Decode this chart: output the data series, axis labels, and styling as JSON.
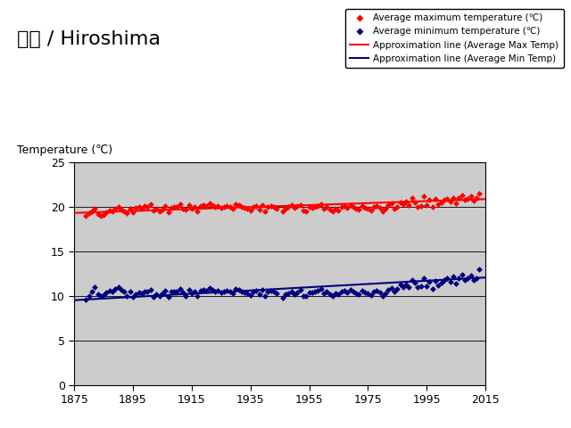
{
  "title_jp": "広島 / Hiroshima",
  "ylabel": "Temperature (℃)",
  "xlim": [
    1875,
    2015
  ],
  "ylim": [
    0,
    25
  ],
  "yticks": [
    0,
    5,
    10,
    15,
    20,
    25
  ],
  "xticks": [
    1875,
    1895,
    1915,
    1935,
    1955,
    1975,
    1995,
    2015
  ],
  "bg_color": "#cccccc",
  "legend_labels": [
    "Average maximum temperature (℃)",
    "Average minimum temperature (℃)",
    "Approximation line (Average Max Temp)",
    "Approximation line (Average Min Temp)"
  ],
  "max_temp_scatter": {
    "years": [
      1879,
      1880,
      1881,
      1882,
      1883,
      1884,
      1885,
      1886,
      1887,
      1888,
      1889,
      1890,
      1891,
      1892,
      1893,
      1894,
      1895,
      1896,
      1897,
      1898,
      1899,
      1900,
      1901,
      1902,
      1903,
      1904,
      1905,
      1906,
      1907,
      1908,
      1909,
      1910,
      1911,
      1912,
      1913,
      1914,
      1915,
      1916,
      1917,
      1918,
      1919,
      1920,
      1921,
      1922,
      1923,
      1924,
      1925,
      1926,
      1927,
      1928,
      1929,
      1930,
      1931,
      1932,
      1933,
      1934,
      1935,
      1936,
      1937,
      1938,
      1939,
      1940,
      1941,
      1942,
      1943,
      1944,
      1946,
      1947,
      1948,
      1949,
      1950,
      1951,
      1952,
      1953,
      1954,
      1955,
      1956,
      1957,
      1958,
      1959,
      1960,
      1961,
      1962,
      1963,
      1964,
      1965,
      1966,
      1967,
      1968,
      1969,
      1970,
      1971,
      1972,
      1973,
      1974,
      1975,
      1976,
      1977,
      1978,
      1979,
      1980,
      1981,
      1982,
      1983,
      1984,
      1985,
      1986,
      1987,
      1988,
      1989,
      1990,
      1991,
      1992,
      1993,
      1994,
      1995,
      1996,
      1997,
      1998,
      1999,
      2000,
      2001,
      2002,
      2003,
      2004,
      2005,
      2006,
      2007,
      2008,
      2009,
      2010,
      2011,
      2012,
      2013
    ],
    "temps": [
      19.0,
      19.3,
      19.5,
      19.8,
      19.2,
      19.0,
      19.1,
      19.4,
      19.6,
      19.5,
      19.8,
      20.0,
      19.7,
      19.5,
      19.3,
      19.8,
      19.4,
      19.9,
      20.0,
      19.8,
      20.1,
      20.0,
      20.3,
      19.6,
      19.8,
      19.5,
      19.7,
      20.1,
      19.4,
      19.9,
      20.0,
      20.0,
      20.3,
      19.8,
      19.7,
      20.2,
      19.8,
      20.0,
      19.5,
      20.1,
      20.2,
      20.1,
      20.4,
      20.2,
      20.0,
      20.1,
      19.9,
      20.0,
      20.1,
      20.0,
      19.8,
      20.3,
      20.2,
      20.0,
      19.9,
      19.8,
      19.6,
      20.0,
      20.1,
      19.7,
      20.2,
      19.5,
      20.0,
      20.1,
      20.0,
      19.8,
      19.5,
      19.8,
      20.0,
      20.2,
      19.9,
      20.1,
      20.2,
      19.6,
      19.5,
      20.0,
      19.9,
      20.0,
      20.1,
      20.3,
      19.8,
      20.0,
      19.7,
      19.5,
      19.8,
      19.6,
      20.0,
      20.1,
      19.9,
      20.2,
      20.0,
      19.8,
      19.7,
      20.1,
      19.9,
      19.8,
      19.6,
      20.0,
      20.1,
      19.9,
      19.5,
      19.8,
      20.2,
      20.4,
      19.8,
      20.0,
      20.5,
      20.3,
      20.6,
      20.2,
      21.0,
      20.5,
      20.0,
      20.1,
      21.2,
      20.2,
      20.8,
      20.0,
      20.9,
      20.3,
      20.5,
      20.8,
      20.9,
      20.6,
      21.0,
      20.4,
      21.0,
      21.3,
      20.8,
      20.9,
      21.2,
      20.7,
      21.0,
      21.5
    ]
  },
  "min_temp_scatter": {
    "years": [
      1879,
      1880,
      1881,
      1882,
      1883,
      1884,
      1885,
      1886,
      1887,
      1888,
      1889,
      1890,
      1891,
      1892,
      1893,
      1894,
      1895,
      1896,
      1897,
      1898,
      1899,
      1900,
      1901,
      1902,
      1903,
      1904,
      1905,
      1906,
      1907,
      1908,
      1909,
      1910,
      1911,
      1912,
      1913,
      1914,
      1915,
      1916,
      1917,
      1918,
      1919,
      1920,
      1921,
      1922,
      1923,
      1924,
      1925,
      1926,
      1927,
      1928,
      1929,
      1930,
      1931,
      1932,
      1933,
      1934,
      1935,
      1936,
      1937,
      1938,
      1939,
      1940,
      1941,
      1942,
      1943,
      1944,
      1946,
      1947,
      1948,
      1949,
      1950,
      1951,
      1952,
      1953,
      1954,
      1955,
      1956,
      1957,
      1958,
      1959,
      1960,
      1961,
      1962,
      1963,
      1964,
      1965,
      1966,
      1967,
      1968,
      1969,
      1970,
      1971,
      1972,
      1973,
      1974,
      1975,
      1976,
      1977,
      1978,
      1979,
      1980,
      1981,
      1982,
      1983,
      1984,
      1985,
      1986,
      1987,
      1988,
      1989,
      1990,
      1991,
      1992,
      1993,
      1994,
      1995,
      1996,
      1997,
      1998,
      1999,
      2000,
      2001,
      2002,
      2003,
      2004,
      2005,
      2006,
      2007,
      2008,
      2009,
      2010,
      2011,
      2012,
      2013
    ],
    "temps": [
      9.6,
      10.0,
      10.5,
      11.0,
      10.2,
      10.0,
      10.1,
      10.4,
      10.6,
      10.5,
      10.8,
      11.0,
      10.7,
      10.5,
      10.0,
      10.5,
      9.9,
      10.2,
      10.4,
      10.3,
      10.5,
      10.5,
      10.7,
      9.9,
      10.2,
      10.0,
      10.3,
      10.6,
      9.9,
      10.5,
      10.5,
      10.5,
      10.8,
      10.4,
      10.0,
      10.7,
      10.3,
      10.5,
      10.0,
      10.6,
      10.7,
      10.6,
      10.9,
      10.7,
      10.5,
      10.6,
      10.4,
      10.5,
      10.6,
      10.5,
      10.3,
      10.8,
      10.7,
      10.5,
      10.4,
      10.3,
      10.1,
      10.5,
      10.6,
      10.2,
      10.7,
      10.0,
      10.5,
      10.6,
      10.5,
      10.3,
      9.8,
      10.2,
      10.3,
      10.5,
      10.2,
      10.4,
      10.7,
      10.0,
      10.0,
      10.4,
      10.4,
      10.5,
      10.6,
      10.8,
      10.3,
      10.5,
      10.2,
      10.0,
      10.3,
      10.2,
      10.5,
      10.6,
      10.4,
      10.7,
      10.5,
      10.3,
      10.2,
      10.6,
      10.4,
      10.3,
      10.1,
      10.5,
      10.6,
      10.4,
      10.0,
      10.3,
      10.7,
      10.9,
      10.5,
      10.8,
      11.3,
      11.0,
      11.3,
      11.0,
      11.8,
      11.5,
      11.0,
      11.1,
      12.0,
      11.1,
      11.6,
      10.8,
      11.7,
      11.2,
      11.5,
      11.8,
      12.0,
      11.6,
      12.2,
      11.4,
      12.0,
      12.4,
      11.8,
      12.0,
      12.3,
      11.8,
      12.0,
      13.0
    ]
  },
  "max_line": {
    "x0": 1875,
    "x1": 2015,
    "y0": 19.35,
    "y1": 20.9
  },
  "min_line": {
    "x0": 1875,
    "x1": 2015,
    "y0": 9.55,
    "y1": 12.1
  }
}
